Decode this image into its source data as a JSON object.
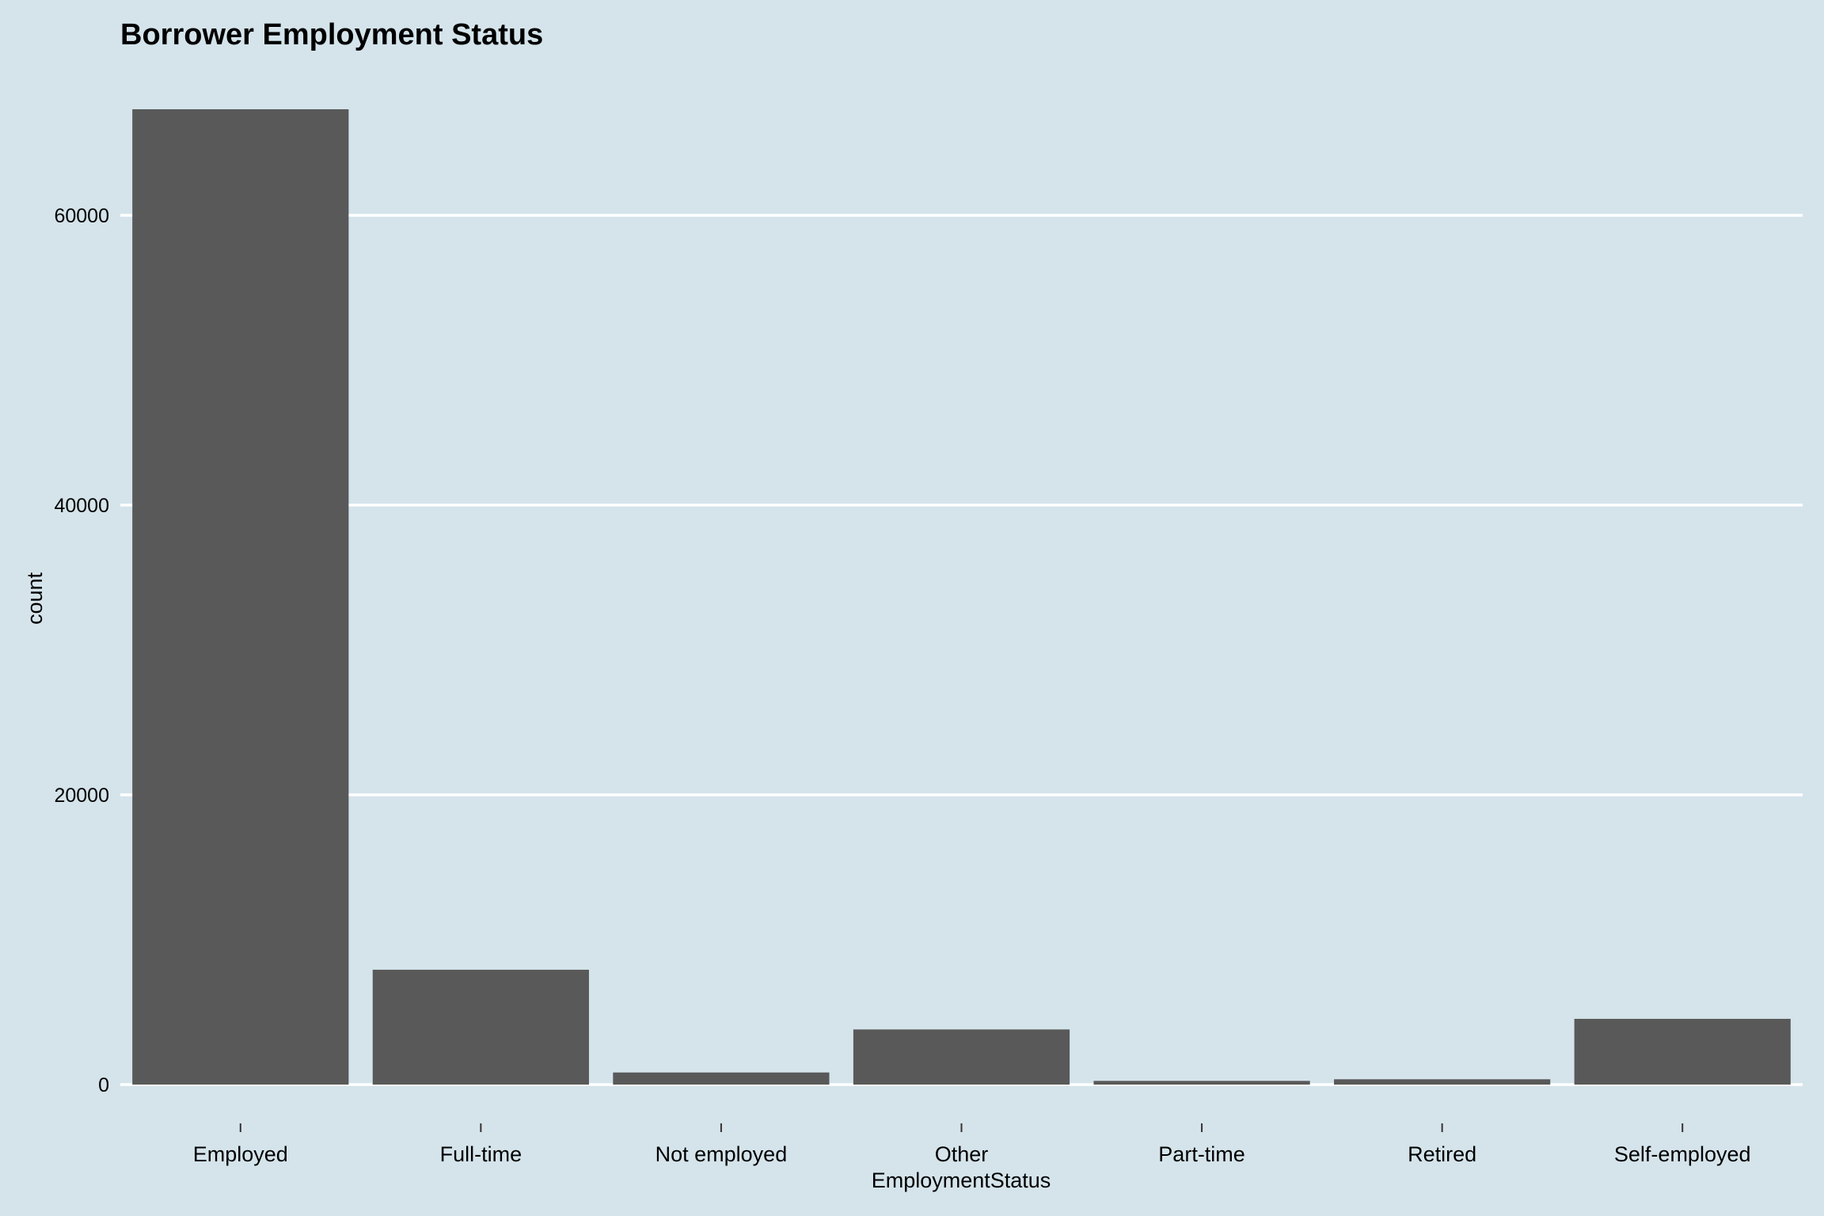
{
  "chart_data": {
    "type": "bar",
    "title": "Borrower Employment Status",
    "xlabel": "EmploymentStatus",
    "ylabel": "count",
    "categories": [
      "Employed",
      "Full-time",
      "Not employed",
      "Other",
      "Part-time",
      "Retired",
      "Self-employed"
    ],
    "values": [
      67322,
      7927,
      835,
      3806,
      256,
      367,
      4538
    ],
    "ylim": [
      0,
      70000
    ],
    "yticks": [
      0,
      20000,
      40000,
      60000
    ],
    "ytick_labels": [
      "0",
      "20000",
      "40000",
      "60000"
    ],
    "grid": "horizontal major",
    "legend": "none",
    "colors": {
      "bar": "#595959",
      "background": "#d5e4eb",
      "grid": "#ffffff"
    }
  }
}
